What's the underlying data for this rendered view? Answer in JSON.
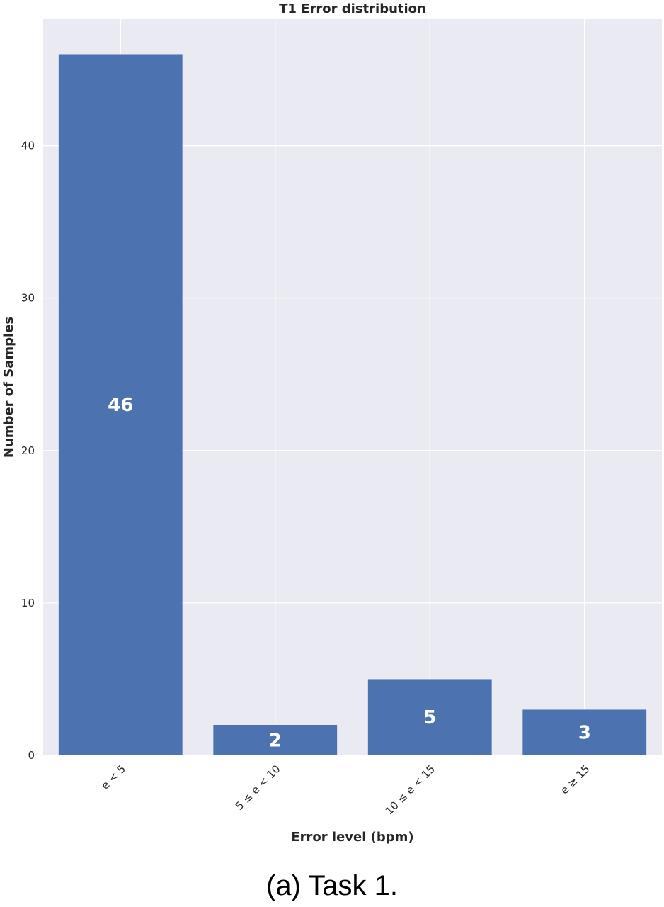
{
  "caption": "(a) Task 1.",
  "colors": {
    "plot_background": "#eaeaf2",
    "grid": "#ffffff",
    "bar": "#4c72b0",
    "bar_label": "#ffffff"
  },
  "chart_data": {
    "type": "bar",
    "title": "T1 Error distribution",
    "xlabel": "Error level (bpm)",
    "ylabel": "Number of Samples",
    "categories": [
      "e < 5",
      "5 ≤ e < 10",
      "10 ≤ e < 15",
      "e ≥ 15"
    ],
    "values": [
      46,
      2,
      5,
      3
    ],
    "data_labels": [
      "46",
      "2",
      "5",
      "3"
    ],
    "ylim": [
      0,
      48.3
    ],
    "yticks": [
      0,
      10,
      20,
      30,
      40
    ],
    "grid": true,
    "xtick_rotation": 45
  }
}
